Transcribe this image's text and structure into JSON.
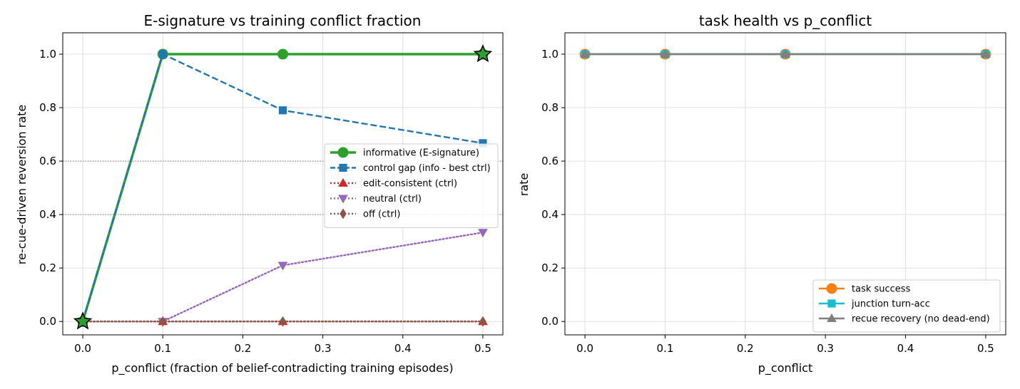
{
  "chart_data": [
    {
      "type": "line",
      "title": "E-signature vs training conflict fraction",
      "xlabel": "p_conflict (fraction of belief-contradicting training episodes)",
      "ylabel": "re-cue-driven reversion rate",
      "xlim": [
        -0.025,
        0.525
      ],
      "ylim": [
        -0.05,
        1.08
      ],
      "xticks": [
        0.0,
        0.1,
        0.2,
        0.3,
        0.4,
        0.5
      ],
      "xtick_labels": [
        "0.0",
        "0.1",
        "0.2",
        "0.3",
        "0.4",
        "0.5"
      ],
      "yticks": [
        0.0,
        0.2,
        0.4,
        0.6,
        0.8,
        1.0
      ],
      "ytick_labels": [
        "0.0",
        "0.2",
        "0.4",
        "0.6",
        "0.8",
        "1.0"
      ],
      "grid": true,
      "reference_lines": [
        0.4,
        0.6
      ],
      "legend_position": "center-right",
      "series": [
        {
          "name": "informative (E-signature)",
          "x": [
            0.0,
            0.1,
            0.25,
            0.5
          ],
          "values": [
            0.0,
            1.0,
            1.0,
            1.0
          ],
          "color": "#2ca02c",
          "style": "solid",
          "marker": "circle"
        },
        {
          "name": "control gap (info - best ctrl)",
          "x": [
            0.0,
            0.1,
            0.25,
            0.5
          ],
          "values": [
            0.0,
            1.0,
            0.79,
            0.667
          ],
          "color": "#1f77b4",
          "style": "dashed",
          "marker": "square"
        },
        {
          "name": "edit-consistent (ctrl)",
          "x": [
            0.0,
            0.1,
            0.25,
            0.5
          ],
          "values": [
            0.0,
            0.0,
            0.0,
            0.0
          ],
          "color": "#d62728",
          "style": "dotted",
          "marker": "triangle-up"
        },
        {
          "name": "neutral (ctrl)",
          "x": [
            0.0,
            0.1,
            0.25,
            0.5
          ],
          "values": [
            0.0,
            0.0,
            0.21,
            0.333
          ],
          "color": "#9467bd",
          "style": "dotted",
          "marker": "triangle-down"
        },
        {
          "name": "off (ctrl)",
          "x": [
            0.0,
            0.1,
            0.25,
            0.5
          ],
          "values": [
            0.0,
            0.0,
            0.0,
            0.0
          ],
          "color": "#8c564b",
          "style": "dotted",
          "marker": "diamond"
        }
      ],
      "highlight_points": [
        {
          "x": 0.0,
          "y": 0.0,
          "marker": "star",
          "color": "#2ca02c"
        },
        {
          "x": 0.5,
          "y": 1.0,
          "marker": "star",
          "color": "#2ca02c"
        }
      ]
    },
    {
      "type": "line",
      "title": "task health vs p_conflict",
      "xlabel": "p_conflict",
      "ylabel": "rate",
      "xlim": [
        -0.025,
        0.525
      ],
      "ylim": [
        -0.05,
        1.08
      ],
      "xticks": [
        0.0,
        0.1,
        0.2,
        0.3,
        0.4,
        0.5
      ],
      "xtick_labels": [
        "0.0",
        "0.1",
        "0.2",
        "0.3",
        "0.4",
        "0.5"
      ],
      "yticks": [
        0.0,
        0.2,
        0.4,
        0.6,
        0.8,
        1.0
      ],
      "ytick_labels": [
        "0.0",
        "0.2",
        "0.4",
        "0.6",
        "0.8",
        "1.0"
      ],
      "grid": true,
      "legend_position": "lower-right",
      "series": [
        {
          "name": "task success",
          "x": [
            0.0,
            0.1,
            0.25,
            0.5
          ],
          "values": [
            1.0,
            1.0,
            1.0,
            1.0
          ],
          "color": "#ff7f0e",
          "style": "solid",
          "marker": "circle"
        },
        {
          "name": "junction turn-acc",
          "x": [
            0.0,
            0.1,
            0.25,
            0.5
          ],
          "values": [
            1.0,
            1.0,
            1.0,
            1.0
          ],
          "color": "#17becf",
          "style": "solid",
          "marker": "square"
        },
        {
          "name": "recue recovery (no dead-end)",
          "x": [
            0.0,
            0.1,
            0.25,
            0.5
          ],
          "values": [
            1.0,
            1.0,
            1.0,
            1.0
          ],
          "color": "#7f7f7f",
          "style": "solid",
          "marker": "triangle-up"
        }
      ]
    }
  ]
}
